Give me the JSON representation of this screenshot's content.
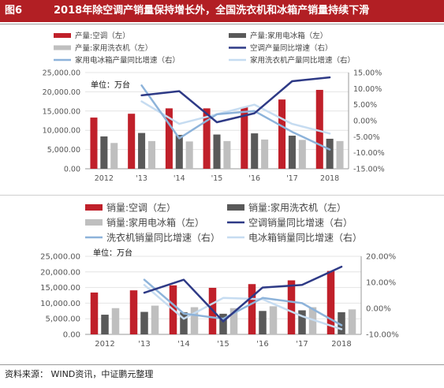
{
  "figure": {
    "number": "图6",
    "title": "2018年除空调产销量保持增长外，全国洗衣机和冰箱产销量持续下滑"
  },
  "source": "资料来源：  WIND资讯，中证鹏元整理",
  "colors": {
    "title_bg": "#b21f24",
    "ac": "#c0202a",
    "gray_dark": "#595959",
    "gray_light": "#bfbfbf",
    "navy": "#2e3a86",
    "blue_mid": "#8db3da",
    "blue_light": "#c6dcf1"
  },
  "chart_data": [
    {
      "type": "bar",
      "unit_label": "单位：万台",
      "categories": [
        "2012",
        "'13",
        "'14",
        "'15",
        "'16",
        "'17",
        "2018"
      ],
      "ylim": [
        0,
        25000
      ],
      "y_ticks": [
        "0.00",
        "5,000.00",
        "10,000.00",
        "15,000.00",
        "20,000.00",
        "25,000.00"
      ],
      "y2lim": [
        -15,
        15
      ],
      "y2_ticks": [
        "-15.00%",
        "-10.00%",
        "-5.00%",
        "0.00%",
        "5.00%",
        "10.00%",
        "15.00%"
      ],
      "legend_columns": 2,
      "series": [
        {
          "name": "产量:空调（左）",
          "kind": "bar",
          "axis": "left",
          "color": "#c0202a",
          "values": [
            13300,
            14300,
            15700,
            15700,
            16000,
            18000,
            20500
          ]
        },
        {
          "name": "产量:家用电冰箱（左）",
          "kind": "bar",
          "axis": "left",
          "color": "#595959",
          "values": [
            8400,
            9300,
            8800,
            8900,
            9200,
            8600,
            7800
          ]
        },
        {
          "name": "产量:家用洗衣机（左）",
          "kind": "bar",
          "axis": "left",
          "color": "#bfbfbf",
          "values": [
            6700,
            7200,
            7100,
            7200,
            7600,
            7500,
            7200
          ]
        },
        {
          "name": "空调产量同比增速（右）",
          "kind": "line",
          "axis": "right",
          "color": "#2e3a86",
          "values": [
            null,
            7.9,
            9.2,
            -0.5,
            2.3,
            12.3,
            13.5
          ]
        },
        {
          "name": "家用电冰箱产量同比增速（右）",
          "kind": "line",
          "axis": "right",
          "color": "#8db3da",
          "values": [
            null,
            11.0,
            -5.5,
            2.0,
            3.0,
            -3.5,
            -9.0
          ]
        },
        {
          "name": "家用洗衣机产量同比增速（右）",
          "kind": "line",
          "axis": "right",
          "color": "#c6dcf1",
          "values": [
            null,
            6.0,
            -1.0,
            2.0,
            5.0,
            -1.0,
            -4.0
          ]
        }
      ]
    },
    {
      "type": "bar",
      "unit_label": "单位：万台",
      "categories": [
        "2012",
        "'13",
        "'14",
        "'15",
        "'16",
        "'17",
        "2018"
      ],
      "ylim": [
        0,
        25000
      ],
      "y_ticks": [
        "0.00",
        "5,000.00",
        "10,000.00",
        "15,000.00",
        "20,000.00",
        "25,000.00"
      ],
      "y2lim": [
        -10,
        20
      ],
      "y2_ticks": [
        "-10.00%",
        "0.00%",
        "10.00%",
        "20.00%"
      ],
      "legend_columns": 2,
      "series": [
        {
          "name": "销量:空调（左）",
          "kind": "bar",
          "axis": "left",
          "color": "#c0202a",
          "values": [
            13400,
            14100,
            15700,
            14900,
            16100,
            17300,
            20300
          ]
        },
        {
          "name": "销量:家用洗衣机（左）",
          "kind": "bar",
          "axis": "left",
          "color": "#595959",
          "values": [
            6300,
            7200,
            7100,
            6600,
            7500,
            7700,
            7100
          ]
        },
        {
          "name": "销量:家用电冰箱（左）",
          "kind": "bar",
          "axis": "left",
          "color": "#bfbfbf",
          "values": [
            8400,
            9200,
            8700,
            8400,
            9000,
            8700,
            8000
          ]
        },
        {
          "name": "空调销量同比增速（右）",
          "kind": "line",
          "axis": "right",
          "color": "#2e3a86",
          "values": [
            null,
            6.0,
            11.0,
            -5.0,
            8.0,
            9.0,
            16.0
          ]
        },
        {
          "name": "洗衣机销量同比增速（右）",
          "kind": "line",
          "axis": "right",
          "color": "#8db3da",
          "values": [
            null,
            11.0,
            -2.0,
            -4.0,
            4.0,
            2.0,
            -6.5
          ]
        },
        {
          "name": "电冰箱销量同比增速（右）",
          "kind": "line",
          "axis": "right",
          "color": "#c6dcf1",
          "values": [
            null,
            9.0,
            -4.0,
            4.0,
            3.5,
            -3.0,
            -8.0
          ]
        }
      ]
    }
  ]
}
